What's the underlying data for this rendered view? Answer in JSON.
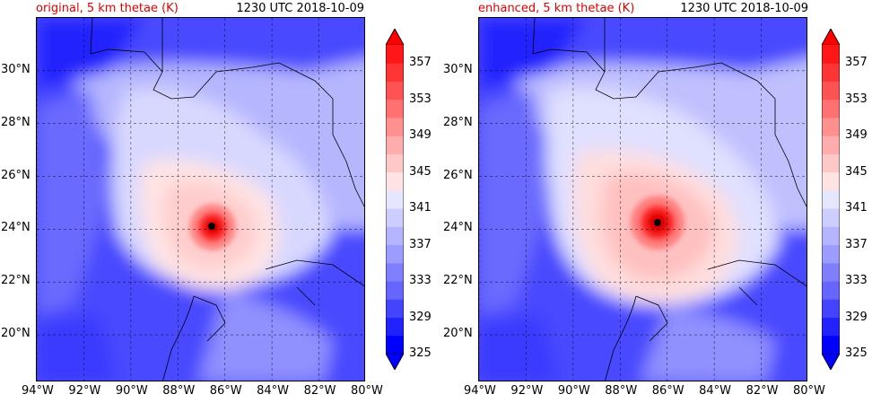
{
  "panels": [
    {
      "id": "left",
      "title_left": "original, 5 km thetae (K)",
      "title_right": "1230 UTC 2018-10-09",
      "storm_center": {
        "lon": -86.6,
        "lat": 24.2
      }
    },
    {
      "id": "right",
      "title_left": "enhanced, 5 km thetae (K)",
      "title_right": "1230 UTC 2018-10-09",
      "storm_center": {
        "lon": -86.4,
        "lat": 24.3
      }
    }
  ],
  "map": {
    "lon_range": [
      -94,
      -80
    ],
    "lat_range": [
      18.2,
      32
    ],
    "lon_ticks": [
      "94°W",
      "92°W",
      "90°W",
      "88°W",
      "86°W",
      "84°W",
      "82°W",
      "80°W"
    ],
    "lon_tick_values": [
      -94,
      -92,
      -90,
      -88,
      -86,
      -84,
      -82,
      -80
    ],
    "lat_ticks": [
      "20°N",
      "22°N",
      "24°N",
      "26°N",
      "28°N",
      "30°N"
    ],
    "lat_tick_values": [
      20,
      22,
      24,
      26,
      28,
      30
    ],
    "gridlines": "dashed"
  },
  "colorbar": {
    "labels": [
      "325",
      "329",
      "333",
      "337",
      "341",
      "345",
      "349",
      "353",
      "357"
    ],
    "levels": [
      325,
      327,
      329,
      331,
      333,
      335,
      337,
      339,
      341,
      343,
      345,
      347,
      349,
      351,
      353,
      355,
      357,
      359
    ],
    "extend": "both",
    "colors": [
      "#0000ff",
      "#2222ff",
      "#4444ff",
      "#6666ff",
      "#8080ff",
      "#9c9cff",
      "#b4b4ff",
      "#cdcdff",
      "#e6e6ff",
      "#ffe2e2",
      "#ffc8c8",
      "#ffacac",
      "#ff9090",
      "#ff7070",
      "#ff5252",
      "#ff3434",
      "#ff1616"
    ],
    "under_color": "#0000ff",
    "over_color": "#ff0000"
  }
}
